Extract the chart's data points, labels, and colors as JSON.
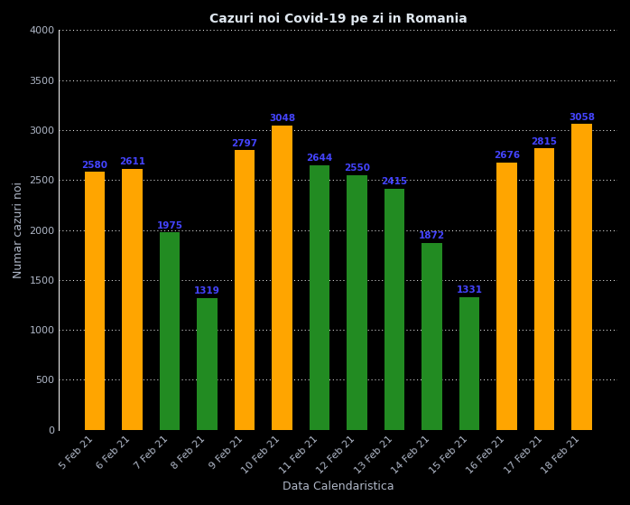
{
  "title": "Cazuri noi Covid-19 pe zi in Romania",
  "xlabel": "Data Calendaristica",
  "ylabel": "Numar cazuri noi",
  "categories": [
    "5 Feb 21",
    "6 Feb 21",
    "7 Feb 21",
    "8 Feb 21",
    "9 Feb 21",
    "10 Feb 21",
    "11 Feb 21",
    "12 Feb 21",
    "13 Feb 21",
    "14 Feb 21",
    "15 Feb 21",
    "16 Feb 21",
    "17 Feb 21",
    "18 Feb 21"
  ],
  "values": [
    2580,
    2611,
    1975,
    1319,
    2797,
    3048,
    2644,
    2550,
    2415,
    1872,
    1331,
    2676,
    2815,
    3058
  ],
  "colors": [
    "#FFA500",
    "#FFA500",
    "#228B22",
    "#228B22",
    "#FFA500",
    "#FFA500",
    "#228B22",
    "#228B22",
    "#228B22",
    "#228B22",
    "#228B22",
    "#FFA500",
    "#FFA500",
    "#FFA500"
  ],
  "ylim": [
    0,
    4000
  ],
  "yticks": [
    0,
    500,
    1000,
    1500,
    2000,
    2500,
    3000,
    3500,
    4000
  ],
  "annotation_color": "#4444FF",
  "background_color": "#000000",
  "plot_bg_color": "#000000",
  "grid_color": "#FFFFFF",
  "tick_color": "#B0B8C8",
  "title_color": "#E0E8F0",
  "label_color": "#B0B8C8",
  "bar_width": 0.55
}
